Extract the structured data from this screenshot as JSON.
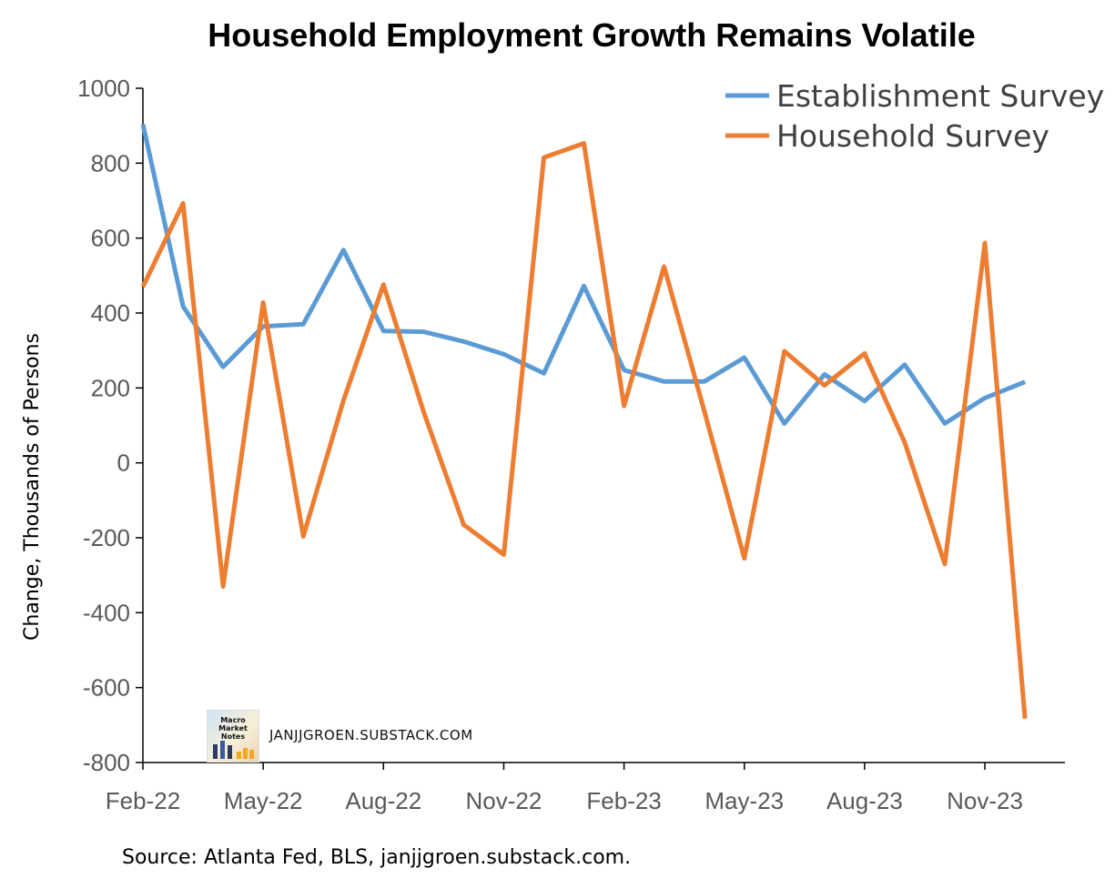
{
  "chart_data": {
    "type": "line",
    "title": "Household Employment Growth Remains Volatile",
    "ylabel": "Change, Thousands of Persons",
    "xlabel": "",
    "ylim": [
      -800,
      1000
    ],
    "yticks": [
      -800,
      -600,
      -400,
      -200,
      0,
      200,
      400,
      600,
      800,
      1000
    ],
    "x": [
      "Feb-22",
      "Mar-22",
      "Apr-22",
      "May-22",
      "Jun-22",
      "Jul-22",
      "Aug-22",
      "Sep-22",
      "Oct-22",
      "Nov-22",
      "Dec-22",
      "Jan-23",
      "Feb-23",
      "Mar-23",
      "Apr-23",
      "May-23",
      "Jun-23",
      "Jul-23",
      "Aug-23",
      "Sep-23",
      "Oct-23",
      "Nov-23",
      "Dec-23"
    ],
    "xticks": [
      "Feb-22",
      "May-22",
      "Aug-22",
      "Nov-22",
      "Feb-23",
      "May-23",
      "Aug-23",
      "Nov-23"
    ],
    "legend_position": "top-right",
    "grid": false,
    "series": [
      {
        "name": "Establishment Survey",
        "color": "#5b9bd5",
        "values": [
          904,
          418,
          256,
          364,
          370,
          568,
          352,
          350,
          324,
          290,
          239,
          472,
          248,
          217,
          217,
          281,
          105,
          236,
          165,
          262,
          105,
          173,
          216
        ]
      },
      {
        "name": "Household Survey",
        "color": "#ed7d31",
        "values": [
          470,
          693,
          -330,
          428,
          -196,
          166,
          476,
          137,
          -165,
          -245,
          815,
          853,
          152,
          524,
          139,
          -255,
          298,
          207,
          292,
          55,
          -270,
          587,
          -683
        ]
      }
    ]
  },
  "source_note": "Source: Atlanta Fed, BLS, janjjgroen.substack.com.",
  "watermark": {
    "logo_text": "Macro Market Notes",
    "site": "JANJJGROEN.SUBSTACK.COM"
  }
}
